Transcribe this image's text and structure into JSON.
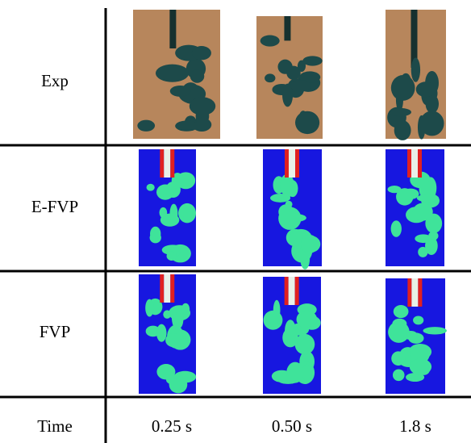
{
  "rows": [
    {
      "label": "Exp"
    },
    {
      "label": "E-FVP"
    },
    {
      "label": "FVP"
    }
  ],
  "time": {
    "label": "Time",
    "values": [
      "0.25 s",
      "0.50 s",
      "1.8 s"
    ]
  }
}
